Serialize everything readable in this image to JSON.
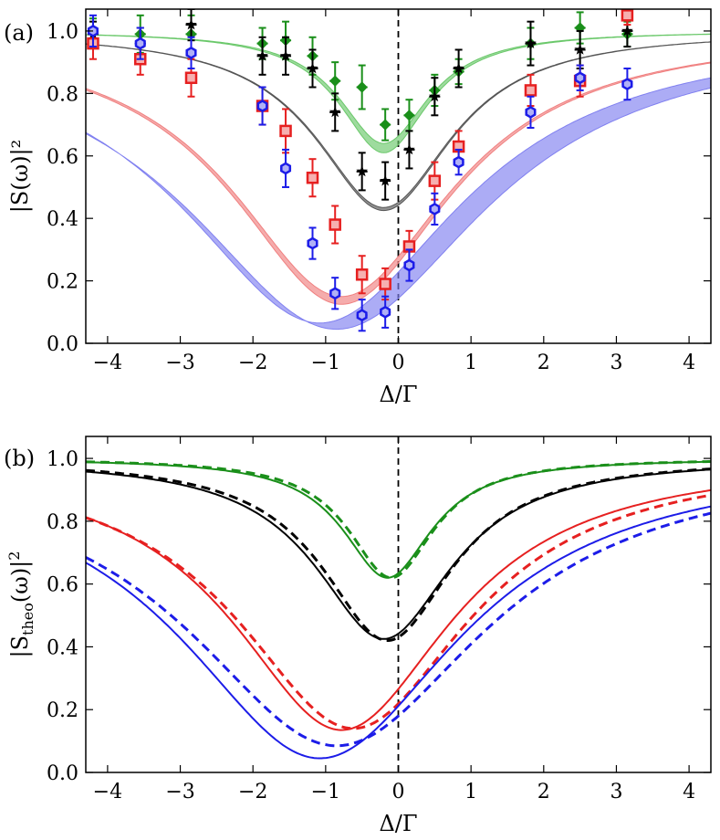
{
  "chart_data": [
    {
      "type": "scatter",
      "panel_label": "(a)",
      "xlabel": "Δ/Γ",
      "ylabel": "|S(ω)|²",
      "xlim": [
        -4.3,
        4.3
      ],
      "ylim": [
        0.0,
        1.07
      ],
      "x_ticks": [
        -4,
        -3,
        -2,
        -1,
        0,
        1,
        2,
        3,
        4
      ],
      "x_tick_labels": [
        "−4",
        "−3",
        "−2",
        "−1",
        "0",
        "1",
        "2",
        "3",
        "4"
      ],
      "y_ticks": [
        0.0,
        0.2,
        0.4,
        0.6,
        0.8,
        1.0
      ],
      "y_tick_labels": [
        "0.0",
        "0.2",
        "0.4",
        "0.6",
        "0.8",
        "1.0"
      ],
      "grid": false,
      "reference_line_x": 0,
      "series": [
        {
          "name": "green",
          "color": "#1a8f1a",
          "marker": "diamond",
          "band": {
            "center": -0.2,
            "width": 0.75,
            "depth_low": 0.36,
            "depth_high": 0.39,
            "fill": "#6ac86a"
          },
          "points": [
            {
              "x": 3.15,
              "y": 0.99,
              "err": 0.04
            },
            {
              "x": 2.5,
              "y": 1.01,
              "err": 0.05
            },
            {
              "x": 1.82,
              "y": 0.96,
              "err": 0.05
            },
            {
              "x": 0.83,
              "y": 0.87,
              "err": 0.04
            },
            {
              "x": 0.5,
              "y": 0.81,
              "err": 0.05
            },
            {
              "x": 0.15,
              "y": 0.73,
              "err": 0.05
            },
            {
              "x": -0.18,
              "y": 0.7,
              "err": 0.05
            },
            {
              "x": -0.5,
              "y": 0.82,
              "err": 0.07
            },
            {
              "x": -0.87,
              "y": 0.84,
              "err": 0.06
            },
            {
              "x": -1.18,
              "y": 0.92,
              "err": 0.06
            },
            {
              "x": -1.55,
              "y": 0.97,
              "err": 0.06
            },
            {
              "x": -1.87,
              "y": 0.96,
              "err": 0.05
            },
            {
              "x": -2.85,
              "y": 0.99,
              "err": 0.06
            },
            {
              "x": -3.55,
              "y": 0.99,
              "err": 0.06
            },
            {
              "x": -4.2,
              "y": 1.0,
              "err": 0.04
            }
          ]
        },
        {
          "name": "black",
          "color": "#000000",
          "marker": "star",
          "band": {
            "center": -0.2,
            "width": 1.15,
            "depth_low": 0.565,
            "depth_high": 0.575,
            "fill": "#555555"
          },
          "points": [
            {
              "x": 3.15,
              "y": 1.0,
              "err": 0.05
            },
            {
              "x": 2.5,
              "y": 0.94,
              "err": 0.06
            },
            {
              "x": 1.82,
              "y": 0.96,
              "err": 0.07
            },
            {
              "x": 0.83,
              "y": 0.88,
              "err": 0.06
            },
            {
              "x": 0.5,
              "y": 0.79,
              "err": 0.06
            },
            {
              "x": 0.15,
              "y": 0.62,
              "err": 0.06
            },
            {
              "x": -0.18,
              "y": 0.52,
              "err": 0.06
            },
            {
              "x": -0.5,
              "y": 0.55,
              "err": 0.06
            },
            {
              "x": -0.87,
              "y": 0.74,
              "err": 0.06
            },
            {
              "x": -1.18,
              "y": 0.88,
              "err": 0.06
            },
            {
              "x": -1.55,
              "y": 0.92,
              "err": 0.06
            },
            {
              "x": -1.87,
              "y": 0.92,
              "err": 0.06
            },
            {
              "x": -2.85,
              "y": 1.02,
              "err": 0.05
            },
            {
              "x": -3.55,
              "y": 0.96,
              "err": 0.05
            },
            {
              "x": -4.2,
              "y": 0.99,
              "err": 0.04
            }
          ]
        },
        {
          "name": "red",
          "color": "#e62020",
          "marker": "square",
          "band": {
            "center": -0.78,
            "width": 1.85,
            "depth_low": 0.85,
            "depth_high": 0.875,
            "fill": "#f08080"
          },
          "points": [
            {
              "x": 3.15,
              "y": 1.05,
              "err": 0.03
            },
            {
              "x": 2.5,
              "y": 0.84,
              "err": 0.05
            },
            {
              "x": 1.82,
              "y": 0.81,
              "err": 0.05
            },
            {
              "x": 0.83,
              "y": 0.63,
              "err": 0.05
            },
            {
              "x": 0.5,
              "y": 0.52,
              "err": 0.06
            },
            {
              "x": 0.15,
              "y": 0.31,
              "err": 0.05
            },
            {
              "x": -0.18,
              "y": 0.19,
              "err": 0.05
            },
            {
              "x": -0.5,
              "y": 0.22,
              "err": 0.06
            },
            {
              "x": -0.87,
              "y": 0.38,
              "err": 0.06
            },
            {
              "x": -1.18,
              "y": 0.53,
              "err": 0.06
            },
            {
              "x": -1.55,
              "y": 0.68,
              "err": 0.07
            },
            {
              "x": -1.87,
              "y": 0.76,
              "err": 0.06
            },
            {
              "x": -2.85,
              "y": 0.85,
              "err": 0.06
            },
            {
              "x": -3.55,
              "y": 0.91,
              "err": 0.05
            },
            {
              "x": -4.2,
              "y": 0.96,
              "err": 0.05
            }
          ]
        },
        {
          "name": "blue",
          "color": "#1c1ce8",
          "marker": "hexagon",
          "band": {
            "center": -1.08,
            "width": 2.35,
            "depth_low": 0.935,
            "depth_high": 0.955,
            "fill": "#8080f0",
            "center_alt": -0.85
          },
          "points": [
            {
              "x": 3.15,
              "y": 0.83,
              "err": 0.05
            },
            {
              "x": 2.5,
              "y": 0.85,
              "err": 0.04
            },
            {
              "x": 1.82,
              "y": 0.74,
              "err": 0.05
            },
            {
              "x": 0.83,
              "y": 0.58,
              "err": 0.04
            },
            {
              "x": 0.5,
              "y": 0.43,
              "err": 0.05
            },
            {
              "x": 0.15,
              "y": 0.25,
              "err": 0.05
            },
            {
              "x": -0.18,
              "y": 0.1,
              "err": 0.05
            },
            {
              "x": -0.5,
              "y": 0.09,
              "err": 0.05
            },
            {
              "x": -0.87,
              "y": 0.16,
              "err": 0.05
            },
            {
              "x": -1.18,
              "y": 0.32,
              "err": 0.05
            },
            {
              "x": -1.55,
              "y": 0.56,
              "err": 0.06
            },
            {
              "x": -1.87,
              "y": 0.76,
              "err": 0.06
            },
            {
              "x": -2.85,
              "y": 0.93,
              "err": 0.05
            },
            {
              "x": -3.55,
              "y": 0.96,
              "err": 0.05
            },
            {
              "x": -4.2,
              "y": 1.0,
              "err": 0.05
            }
          ]
        }
      ]
    },
    {
      "type": "line",
      "panel_label": "(b)",
      "xlabel": "Δ/Γ",
      "ylabel": "|Stheo(ω)|²",
      "ylabel_base": "|S",
      "ylabel_sub": "theo",
      "ylabel_rest": "(ω)|",
      "ylabel_sup": "2",
      "xlim": [
        -4.3,
        4.3
      ],
      "ylim": [
        0.0,
        1.07
      ],
      "x_ticks": [
        -4,
        -3,
        -2,
        -1,
        0,
        1,
        2,
        3,
        4
      ],
      "x_tick_labels": [
        "−4",
        "−3",
        "−2",
        "−1",
        "0",
        "1",
        "2",
        "3",
        "4"
      ],
      "y_ticks": [
        0.0,
        0.2,
        0.4,
        0.6,
        0.8,
        1.0
      ],
      "y_tick_labels": [
        "0.0",
        "0.2",
        "0.4",
        "0.6",
        "0.8",
        "1.0"
      ],
      "grid": false,
      "reference_line_x": 0,
      "series": [
        {
          "name": "green solid",
          "color": "#1a8f1a",
          "dash": "none",
          "center": -0.15,
          "width": 0.75,
          "depth": 0.38
        },
        {
          "name": "green dashed",
          "color": "#1a8f1a",
          "dash": "dashed",
          "center": -0.1,
          "width": 0.72,
          "depth": 0.38
        },
        {
          "name": "black solid",
          "color": "#000000",
          "dash": "none",
          "center": -0.2,
          "width": 1.15,
          "depth": 0.575
        },
        {
          "name": "black dashed",
          "color": "#000000",
          "dash": "dashed",
          "center": -0.15,
          "width": 1.1,
          "depth": 0.58
        },
        {
          "name": "red solid",
          "color": "#e62020",
          "dash": "none",
          "center": -0.78,
          "width": 1.85,
          "depth": 0.865
        },
        {
          "name": "red dashed",
          "color": "#e62020",
          "dash": "dashed",
          "center": -0.62,
          "width": 1.95,
          "depth": 0.86
        },
        {
          "name": "blue solid",
          "color": "#1c1ce8",
          "dash": "none",
          "center": -1.08,
          "width": 2.35,
          "depth": 0.955
        },
        {
          "name": "blue dashed",
          "color": "#1c1ce8",
          "dash": "dashed",
          "center": -0.85,
          "width": 2.5,
          "depth": 0.915
        }
      ]
    }
  ]
}
